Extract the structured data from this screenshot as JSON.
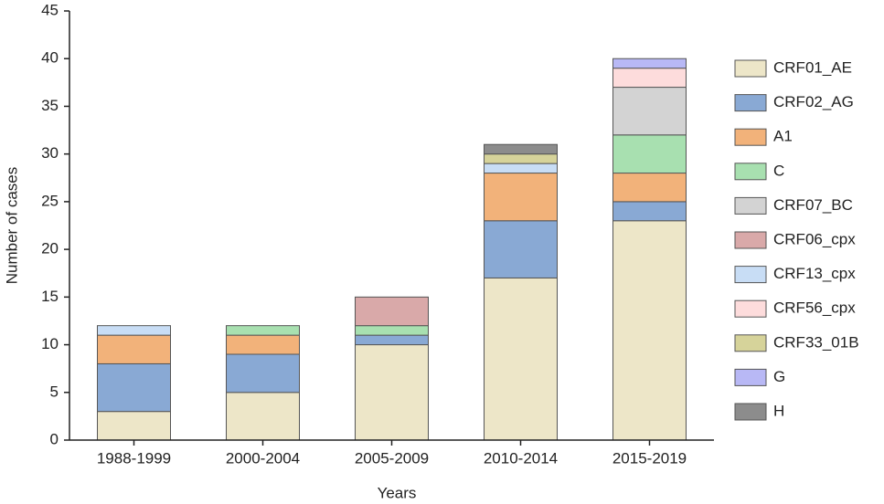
{
  "chart_data": {
    "type": "stacked_bar",
    "x_label": "Years",
    "y_label": "Number of cases",
    "categories": [
      "1988-1999",
      "2000-2004",
      "2005-2009",
      "2010-2014",
      "2015-2019"
    ],
    "series": [
      {
        "name": "CRF01_AE",
        "color": "#ede6c8",
        "values": [
          3,
          5,
          10,
          17,
          23
        ]
      },
      {
        "name": "CRF02_AG",
        "color": "#89a9d4",
        "values": [
          5,
          4,
          1,
          6,
          2
        ]
      },
      {
        "name": "A1",
        "color": "#f2b27a",
        "values": [
          3,
          2,
          0,
          5,
          3
        ]
      },
      {
        "name": "C",
        "color": "#a8e0b0",
        "values": [
          0,
          1,
          1,
          0,
          4
        ]
      },
      {
        "name": "CRF07_BC",
        "color": "#d3d3d3",
        "values": [
          0,
          0,
          0,
          0,
          5
        ]
      },
      {
        "name": "CRF06_cpx",
        "color": "#d9a9a9",
        "values": [
          0,
          0,
          3,
          0,
          0
        ]
      },
      {
        "name": "CRF13_cpx",
        "color": "#c8ddf5",
        "values": [
          1,
          0,
          0,
          1,
          0
        ]
      },
      {
        "name": "CRF56_cpx",
        "color": "#fddcdc",
        "values": [
          0,
          0,
          0,
          0,
          2
        ]
      },
      {
        "name": "CRF33_01B",
        "color": "#d6d39a",
        "values": [
          0,
          0,
          0,
          1,
          0
        ]
      },
      {
        "name": "G",
        "color": "#b8b8f5",
        "values": [
          0,
          0,
          0,
          0,
          1
        ]
      },
      {
        "name": "H",
        "color": "#8c8c8c",
        "values": [
          0,
          0,
          0,
          1,
          0
        ]
      }
    ],
    "ylim": [
      0,
      45
    ],
    "yticks": [
      0,
      5,
      10,
      15,
      20,
      25,
      30,
      35,
      40,
      45
    ],
    "legend": "right"
  }
}
